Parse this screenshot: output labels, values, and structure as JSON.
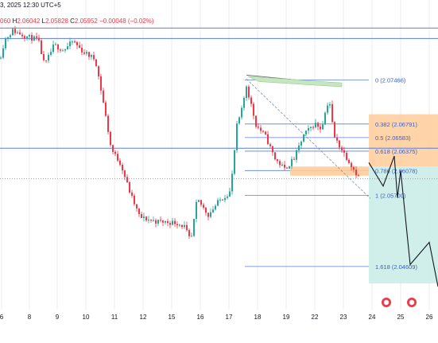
{
  "header": {
    "date_time_text": "3, 2025 12:30 UTC+5",
    "ohlc": {
      "o_value": "060",
      "h_label": "H",
      "h_value": "2.06042",
      "l_label": "L",
      "l_value": "2.05828",
      "c_label": "C",
      "c_value": "2.05952",
      "change_text": "−0.00048 (−0.02%)"
    }
  },
  "colors": {
    "up": "#26a69a",
    "down": "#f23645",
    "fib_line": "#5b7fd6",
    "stop_zone": "#ffcc99",
    "target_zone": "#c8ece6",
    "projection_line": "#131722",
    "grid": "#ececec"
  },
  "chart_data": {
    "type": "candlestick",
    "instrument": "",
    "x_axis": {
      "tick_labels": [
        "6",
        "8",
        "9",
        "10",
        "11",
        "12",
        "15",
        "16",
        "17",
        "18",
        "19",
        "22",
        "23",
        "24",
        "25",
        "26"
      ]
    },
    "y_range": [
      2.0395,
      2.0847
    ],
    "horizontal_levels": [
      2.0826,
      2.081,
      2.0642
    ],
    "last_price_level": 2.05952,
    "candles_note": "OHLC series estimated from the image",
    "fibonacci": {
      "levels": [
        {
          "ratio": "0",
          "price": 2.07466,
          "label": "0 (2.07466)"
        },
        {
          "ratio": "0.382",
          "price": 2.06791,
          "label": "0.382 (2.06791)"
        },
        {
          "ratio": "0.5",
          "price": 2.06583,
          "label": "0.5 (2.06583)"
        },
        {
          "ratio": "0.618",
          "price": 2.06375,
          "label": "0.618 (2.06375)"
        },
        {
          "ratio": "0.786",
          "price": 2.06078,
          "label": "0.786 (2.06078)"
        },
        {
          "ratio": "1",
          "price": 2.057,
          "label": "1 (2.05700)"
        },
        {
          "ratio": "1.618",
          "price": 2.04609,
          "label": "1.618 (2.04609)"
        }
      ]
    },
    "projection_path_prices": [
      2.062,
      2.0584,
      2.063,
      2.0566,
      2.0608,
      2.0464,
      2.0498,
      2.043
    ],
    "stop_zone": {
      "top": 2.0694,
      "bottom": 2.0614
    },
    "target_zone": {
      "top": 2.0614,
      "bottom": 2.0435
    },
    "event_icons": [
      "economic-event",
      "economic-event"
    ]
  }
}
